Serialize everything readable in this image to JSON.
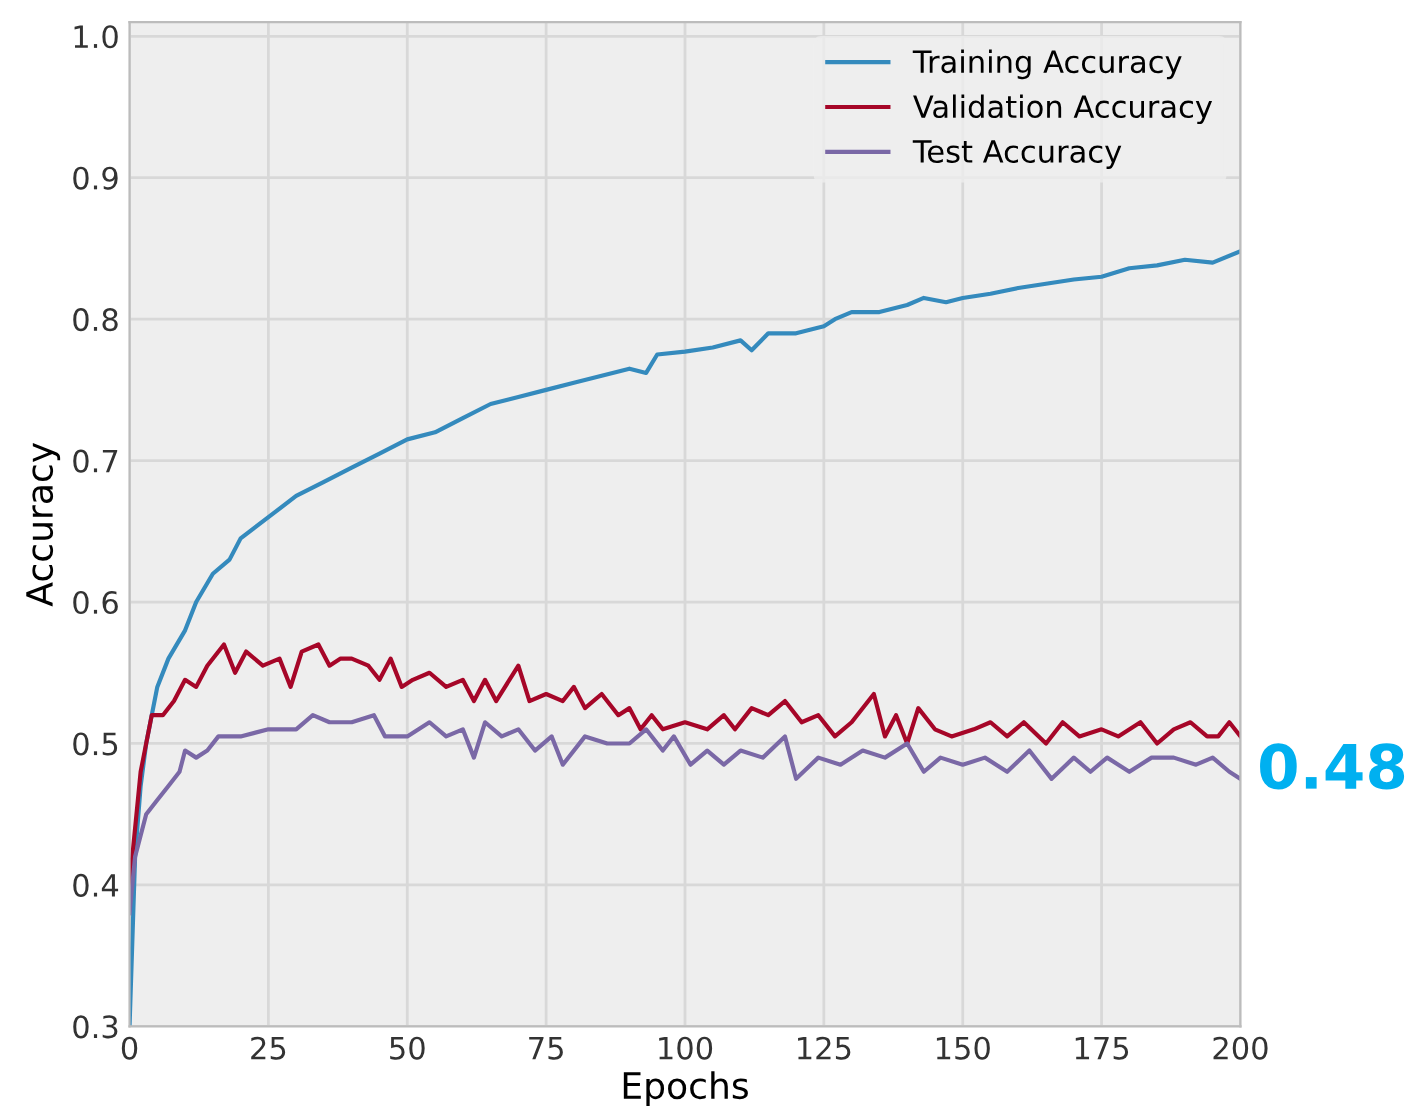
{
  "chart_data": {
    "type": "line",
    "xlabel": "Epochs",
    "ylabel": "Accuracy",
    "xlim": [
      0,
      200
    ],
    "ylim": [
      0.3,
      1.01
    ],
    "xticks": [
      0,
      25,
      50,
      75,
      100,
      125,
      150,
      175,
      200
    ],
    "yticks": [
      0.3,
      0.4,
      0.5,
      0.6,
      0.7,
      0.8,
      0.9,
      {
        "value": 1,
        "label": "1.0"
      }
    ],
    "grid": true,
    "legend": "top right",
    "line_style": "solid",
    "marker": "none",
    "annotations": [
      {
        "text": "0.48",
        "x": 200,
        "y": 0.48
      }
    ],
    "series": [
      {
        "name": "Training Accuracy",
        "color": "#348abd",
        "x": [
          0,
          1,
          2,
          3,
          4,
          5,
          7,
          10,
          12,
          15,
          18,
          20,
          25,
          30,
          35,
          40,
          45,
          50,
          55,
          60,
          65,
          70,
          75,
          80,
          85,
          90,
          93,
          95,
          100,
          105,
          110,
          112,
          115,
          120,
          125,
          127,
          130,
          135,
          140,
          143,
          147,
          150,
          155,
          160,
          165,
          170,
          175,
          180,
          185,
          190,
          195,
          200
        ],
        "values": [
          0.3,
          0.42,
          0.47,
          0.5,
          0.52,
          0.54,
          0.56,
          0.58,
          0.6,
          0.62,
          0.63,
          0.645,
          0.66,
          0.675,
          0.685,
          0.695,
          0.705,
          0.715,
          0.72,
          0.73,
          0.74,
          0.745,
          0.75,
          0.755,
          0.76,
          0.765,
          0.762,
          0.775,
          0.777,
          0.78,
          0.785,
          0.778,
          0.79,
          0.79,
          0.795,
          0.8,
          0.805,
          0.805,
          0.81,
          0.815,
          0.812,
          0.815,
          0.818,
          0.822,
          0.825,
          0.828,
          0.83,
          0.836,
          0.838,
          0.842,
          0.84,
          0.848
        ]
      },
      {
        "name": "Validation Accuracy",
        "color": "#a60628",
        "x": [
          0,
          2,
          4,
          6,
          8,
          10,
          12,
          14,
          17,
          19,
          21,
          24,
          27,
          29,
          31,
          34,
          36,
          38,
          40,
          43,
          45,
          47,
          49,
          51,
          54,
          57,
          60,
          62,
          64,
          66,
          70,
          72,
          75,
          78,
          80,
          82,
          85,
          88,
          90,
          92,
          94,
          96,
          100,
          104,
          107,
          109,
          112,
          115,
          118,
          121,
          124,
          127,
          130,
          134,
          136,
          138,
          140,
          142,
          145,
          148,
          152,
          155,
          158,
          161,
          165,
          168,
          171,
          175,
          178,
          182,
          185,
          188,
          191,
          194,
          196,
          198,
          200
        ],
        "values": [
          0.4,
          0.48,
          0.52,
          0.52,
          0.53,
          0.545,
          0.54,
          0.555,
          0.57,
          0.55,
          0.565,
          0.555,
          0.56,
          0.54,
          0.565,
          0.57,
          0.555,
          0.56,
          0.56,
          0.555,
          0.545,
          0.56,
          0.54,
          0.545,
          0.55,
          0.54,
          0.545,
          0.53,
          0.545,
          0.53,
          0.555,
          0.53,
          0.535,
          0.53,
          0.54,
          0.525,
          0.535,
          0.52,
          0.525,
          0.51,
          0.52,
          0.51,
          0.515,
          0.51,
          0.52,
          0.51,
          0.525,
          0.52,
          0.53,
          0.515,
          0.52,
          0.505,
          0.515,
          0.535,
          0.505,
          0.52,
          0.5,
          0.525,
          0.51,
          0.505,
          0.51,
          0.515,
          0.505,
          0.515,
          0.5,
          0.515,
          0.505,
          0.51,
          0.505,
          0.515,
          0.5,
          0.51,
          0.515,
          0.505,
          0.505,
          0.515,
          0.505
        ]
      },
      {
        "name": "Test Accuracy",
        "color": "#7a68a6",
        "x": [
          0,
          1,
          3,
          5,
          7,
          9,
          10,
          12,
          14,
          16,
          20,
          25,
          30,
          33,
          36,
          40,
          44,
          46,
          50,
          54,
          57,
          60,
          62,
          64,
          67,
          70,
          73,
          76,
          78,
          82,
          86,
          90,
          93,
          96,
          98,
          101,
          104,
          107,
          110,
          114,
          118,
          120,
          124,
          128,
          132,
          136,
          140,
          143,
          146,
          150,
          154,
          158,
          162,
          166,
          170,
          173,
          176,
          180,
          184,
          188,
          192,
          195,
          198,
          200
        ],
        "values": [
          0.38,
          0.42,
          0.45,
          0.46,
          0.47,
          0.48,
          0.495,
          0.49,
          0.495,
          0.505,
          0.505,
          0.51,
          0.51,
          0.52,
          0.515,
          0.515,
          0.52,
          0.505,
          0.505,
          0.515,
          0.505,
          0.51,
          0.49,
          0.515,
          0.505,
          0.51,
          0.495,
          0.505,
          0.485,
          0.505,
          0.5,
          0.5,
          0.51,
          0.495,
          0.505,
          0.485,
          0.495,
          0.485,
          0.495,
          0.49,
          0.505,
          0.475,
          0.49,
          0.485,
          0.495,
          0.49,
          0.5,
          0.48,
          0.49,
          0.485,
          0.49,
          0.48,
          0.495,
          0.475,
          0.49,
          0.48,
          0.49,
          0.48,
          0.49,
          0.49,
          0.485,
          0.49,
          0.48,
          0.475
        ]
      }
    ]
  }
}
